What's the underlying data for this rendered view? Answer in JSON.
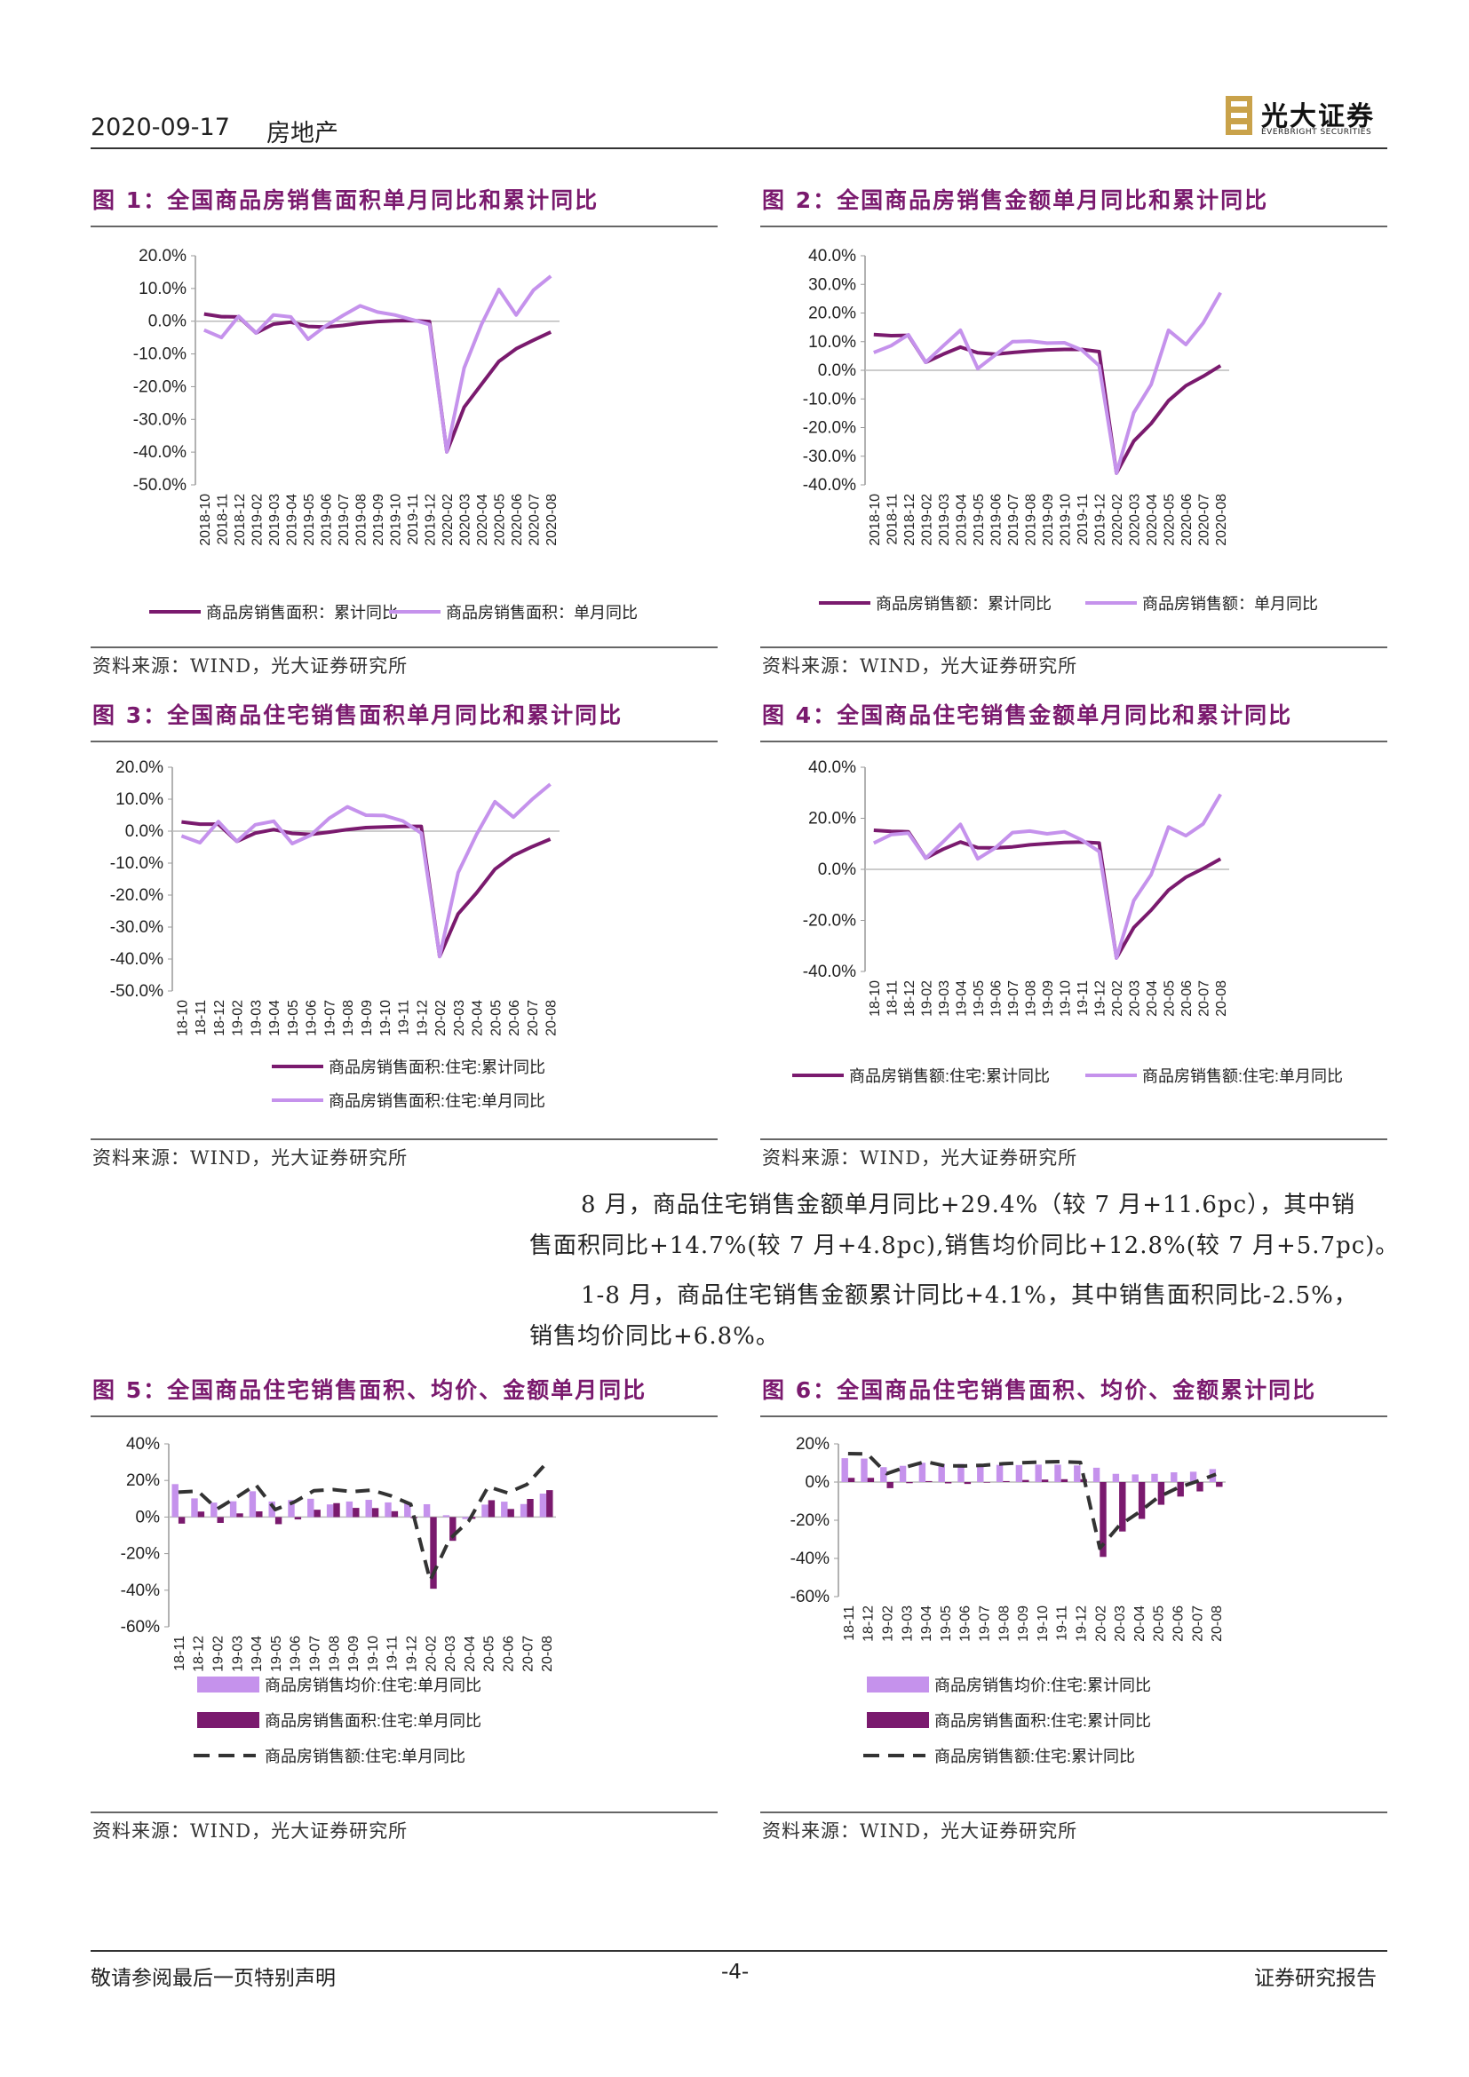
{
  "header": {
    "date": "2020-09-17",
    "sector": "房地产",
    "logo_cn": "光大证券",
    "logo_en": "EVERBRIGHT SECURITIES",
    "accent": "#7a1a6e"
  },
  "figures": [
    {
      "title": "图 1：全国商品房销售面积单月同比和累计同比",
      "source": "资料来源：WIND，光大证券研究所"
    },
    {
      "title": "图 2：全国商品房销售金额单月同比和累计同比",
      "source": "资料来源：WIND，光大证券研究所"
    },
    {
      "title": "图 3：全国商品住宅销售面积单月同比和累计同比",
      "source": "资料来源：WIND，光大证券研究所"
    },
    {
      "title": "图 4：全国商品住宅销售金额单月同比和累计同比",
      "source": "资料来源：WIND，光大证券研究所"
    },
    {
      "title": "图 5：全国商品住宅销售面积、均价、金额单月同比",
      "source": "资料来源：WIND，光大证券研究所"
    },
    {
      "title": "图 6：全国商品住宅销售面积、均价、金额累计同比",
      "source": "资料来源：WIND，光大证券研究所"
    }
  ],
  "paragraphs": [
    {
      "line1": "8 月，商品住宅销售金额单月同比+29.4%（较 7 月+11.6pc），其中销",
      "line2": "售面积同比+14.7%(较 7 月+4.8pc),销售均价同比+12.8%(较 7 月+5.7pc)。"
    },
    {
      "line1": "1-8 月，商品住宅销售金额累计同比+4.1%，其中销售面积同比-2.5%，",
      "line2": "销售均价同比+6.8%。"
    }
  ],
  "footer": {
    "left": "敬请参阅最后一页特别声明",
    "page": "-4-",
    "right": "证券研究报告"
  },
  "chart_data": [
    {
      "type": "line",
      "ylim": [
        -50,
        20
      ],
      "yticks": [
        "20.0%",
        "10.0%",
        "0.0%",
        "-10.0%",
        "-20.0%",
        "-30.0%",
        "-40.0%",
        "-50.0%"
      ],
      "categories": [
        "2018-10",
        "2018-11",
        "2018-12",
        "2019-02",
        "2019-03",
        "2019-04",
        "2019-05",
        "2019-06",
        "2019-07",
        "2019-08",
        "2019-09",
        "2019-10",
        "2019-11",
        "2019-12",
        "2020-02",
        "2020-03",
        "2020-04",
        "2020-05",
        "2020-06",
        "2020-07",
        "2020-08"
      ],
      "series": [
        {
          "name": "商品房销售面积：累计同比",
          "color": "#7a1a6e",
          "values": [
            2.2,
            1.4,
            1.3,
            -3.6,
            -0.9,
            -0.3,
            -1.6,
            -1.8,
            -1.3,
            -0.6,
            -0.1,
            0.1,
            0.2,
            -0.1,
            -39.9,
            -26.3,
            -19.3,
            -12.3,
            -8.4,
            -5.8,
            -3.3
          ]
        },
        {
          "name": "商品房销售面积：单月同比",
          "color": "#c592ec",
          "values": [
            -2.7,
            -5.0,
            1.5,
            -3.6,
            1.9,
            1.3,
            -5.5,
            -1.5,
            1.7,
            4.7,
            2.8,
            1.9,
            0.5,
            -1.0,
            -39.9,
            -14.3,
            -1.0,
            9.7,
            1.9,
            9.5,
            13.8
          ]
        }
      ]
    },
    {
      "type": "line",
      "ylim": [
        -40,
        40
      ],
      "yticks": [
        "40.0%",
        "30.0%",
        "20.0%",
        "10.0%",
        "0.0%",
        "-10.0%",
        "-20.0%",
        "-30.0%",
        "-40.0%"
      ],
      "categories": [
        "2018-10",
        "2018-11",
        "2018-12",
        "2019-02",
        "2019-03",
        "2019-04",
        "2019-05",
        "2019-06",
        "2019-07",
        "2019-08",
        "2019-09",
        "2019-10",
        "2019-11",
        "2019-12",
        "2020-02",
        "2020-03",
        "2020-04",
        "2020-05",
        "2020-06",
        "2020-07",
        "2020-08"
      ],
      "series": [
        {
          "name": "商品房销售额：累计同比",
          "color": "#7a1a6e",
          "values": [
            12.5,
            12.1,
            12.2,
            2.8,
            5.6,
            8.1,
            6.1,
            5.6,
            6.2,
            6.7,
            7.1,
            7.3,
            7.3,
            6.5,
            -35.9,
            -24.7,
            -18.6,
            -10.6,
            -5.4,
            -2.1,
            1.6
          ]
        },
        {
          "name": "商品房销售额：单月同比",
          "color": "#c592ec",
          "values": [
            6.2,
            8.6,
            12.4,
            2.8,
            8.5,
            14.0,
            0.6,
            5.3,
            10.0,
            10.2,
            9.5,
            9.6,
            7.1,
            1.6,
            -35.9,
            -14.8,
            -5.0,
            14.0,
            9.0,
            16.5,
            27.1
          ]
        }
      ]
    },
    {
      "type": "line",
      "ylim": [
        -50,
        20
      ],
      "yticks": [
        "20.0%",
        "10.0%",
        "0.0%",
        "-10.0%",
        "-20.0%",
        "-30.0%",
        "-40.0%",
        "-50.0%"
      ],
      "categories": [
        "18-10",
        "18-11",
        "18-12",
        "19-02",
        "19-03",
        "19-04",
        "19-05",
        "19-06",
        "19-07",
        "19-08",
        "19-09",
        "19-10",
        "19-11",
        "19-12",
        "20-02",
        "20-03",
        "20-04",
        "20-05",
        "20-06",
        "20-07",
        "20-08"
      ],
      "series": [
        {
          "name": "商品房销售面积:住宅:累计同比",
          "color": "#7a1a6e",
          "values": [
            2.9,
            2.2,
            2.2,
            -3.2,
            -0.6,
            0.5,
            -0.7,
            -1.0,
            -0.3,
            0.5,
            1.1,
            1.3,
            1.5,
            1.5,
            -39.2,
            -25.9,
            -19.3,
            -11.9,
            -7.6,
            -4.9,
            -2.5
          ]
        },
        {
          "name": "商品房销售面积:住宅:单月同比",
          "color": "#c592ec",
          "values": [
            -1.5,
            -3.6,
            3.0,
            -3.2,
            2.0,
            3.1,
            -3.9,
            -1.3,
            4.0,
            7.6,
            5.0,
            4.9,
            3.2,
            -0.6,
            -39.2,
            -13.0,
            -1.0,
            9.2,
            4.4,
            9.9,
            14.7
          ]
        }
      ]
    },
    {
      "type": "line",
      "ylim": [
        -40,
        40
      ],
      "yticks": [
        "40.0%",
        "20.0%",
        "0.0%",
        "-20.0%",
        "-40.0%"
      ],
      "categories": [
        "18-10",
        "18-11",
        "18-12",
        "19-02",
        "19-03",
        "19-04",
        "19-05",
        "19-06",
        "19-07",
        "19-08",
        "19-09",
        "19-10",
        "19-11",
        "19-12",
        "20-02",
        "20-03",
        "20-04",
        "20-05",
        "20-06",
        "20-07",
        "20-08"
      ],
      "series": [
        {
          "name": "商品房销售额:住宅:累计同比",
          "color": "#7a1a6e",
          "values": [
            15.3,
            14.9,
            14.7,
            4.4,
            7.9,
            10.7,
            8.5,
            8.4,
            8.8,
            9.6,
            10.1,
            10.5,
            10.7,
            10.3,
            -34.7,
            -22.8,
            -16.0,
            -8.1,
            -3.1,
            0.3,
            4.1
          ]
        },
        {
          "name": "商品房销售额:住宅:单月同比",
          "color": "#c592ec",
          "values": [
            10.3,
            13.6,
            14.2,
            4.4,
            10.8,
            17.6,
            4.1,
            8.3,
            14.4,
            15.0,
            13.9,
            14.7,
            11.5,
            7.0,
            -34.7,
            -12.2,
            -2.1,
            16.6,
            13.2,
            17.8,
            29.4
          ]
        }
      ]
    },
    {
      "type": "bar",
      "ylim": [
        -60,
        40
      ],
      "yticks": [
        "40%",
        "20%",
        "0%",
        "-20%",
        "-40%",
        "-60%"
      ],
      "categories": [
        "18-11",
        "18-12",
        "19-02",
        "19-03",
        "19-04",
        "19-05",
        "19-06",
        "19-07",
        "19-08",
        "19-09",
        "19-10",
        "19-11",
        "19-12",
        "20-02",
        "20-03",
        "20-04",
        "20-05",
        "20-06",
        "20-07",
        "20-08"
      ],
      "series": [
        {
          "name": "商品房销售均价:住宅:单月同比",
          "kind": "bar",
          "color": "#c592ec",
          "values": [
            18.0,
            10.2,
            7.9,
            8.6,
            14.1,
            8.5,
            9.3,
            10.0,
            6.9,
            8.5,
            9.4,
            8.0,
            7.6,
            7.0,
            1.0,
            -1.1,
            6.8,
            8.4,
            7.1,
            12.8
          ]
        },
        {
          "name": "商品房销售面积:住宅:单月同比",
          "kind": "bar",
          "color": "#7a1a6e",
          "values": [
            -3.6,
            3.0,
            -3.2,
            2.0,
            3.1,
            -3.9,
            -1.3,
            4.0,
            7.6,
            5.0,
            4.9,
            3.2,
            -0.6,
            -39.2,
            -13.0,
            -1.0,
            9.2,
            4.4,
            9.9,
            14.7
          ]
        },
        {
          "name": "商品房销售额:住宅:单月同比",
          "kind": "line",
          "color": "#333333",
          "values": [
            13.6,
            14.2,
            4.4,
            10.8,
            17.6,
            4.1,
            8.3,
            14.4,
            15.0,
            13.9,
            14.7,
            11.5,
            7.0,
            -34.7,
            -12.2,
            -2.1,
            16.6,
            13.2,
            17.8,
            29.4
          ]
        }
      ]
    },
    {
      "type": "bar",
      "ylim": [
        -60,
        20
      ],
      "yticks": [
        "20%",
        "0%",
        "-20%",
        "-40%",
        "-60%"
      ],
      "categories": [
        "18-11",
        "18-12",
        "19-02",
        "19-03",
        "19-04",
        "19-05",
        "19-06",
        "19-07",
        "19-08",
        "19-09",
        "19-10",
        "19-11",
        "19-12",
        "20-02",
        "20-03",
        "20-04",
        "20-05",
        "20-06",
        "20-07",
        "20-08"
      ],
      "series": [
        {
          "name": "商品房销售均价:住宅:累计同比",
          "kind": "bar",
          "color": "#c592ec",
          "values": [
            12.5,
            12.3,
            7.8,
            8.5,
            10.1,
            9.3,
            9.5,
            9.2,
            9.0,
            8.9,
            9.1,
            9.1,
            8.7,
            7.5,
            4.3,
            4.0,
            4.3,
            5.1,
            5.4,
            6.8
          ]
        },
        {
          "name": "商品房销售面积:住宅:累计同比",
          "kind": "bar",
          "color": "#7a1a6e",
          "values": [
            2.2,
            2.2,
            -3.2,
            -0.6,
            0.5,
            -0.7,
            -1.0,
            -0.3,
            0.5,
            1.1,
            1.3,
            1.5,
            1.5,
            -39.2,
            -25.9,
            -19.3,
            -11.9,
            -7.6,
            -4.9,
            -2.5
          ]
        },
        {
          "name": "商品房销售额:住宅:累计同比",
          "kind": "line",
          "color": "#333333",
          "values": [
            14.9,
            14.7,
            4.4,
            7.9,
            10.7,
            8.5,
            8.4,
            8.8,
            9.6,
            10.1,
            10.5,
            10.7,
            10.3,
            -34.7,
            -22.8,
            -16.0,
            -8.1,
            -3.1,
            0.3,
            4.1
          ]
        }
      ]
    }
  ]
}
